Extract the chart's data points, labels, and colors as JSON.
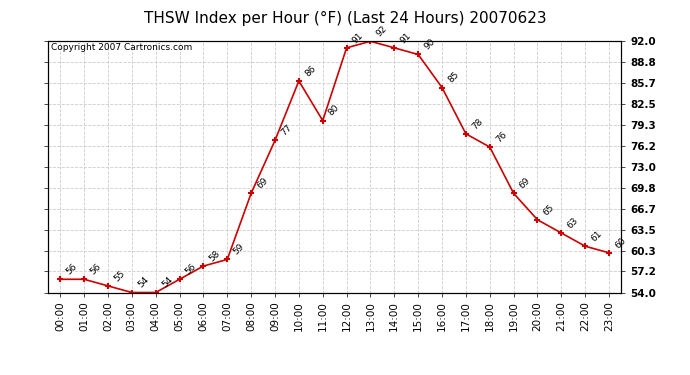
{
  "title": "THSW Index per Hour (°F) (Last 24 Hours) 20070623",
  "copyright": "Copyright 2007 Cartronics.com",
  "hours": [
    "00:00",
    "01:00",
    "02:00",
    "03:00",
    "04:00",
    "05:00",
    "06:00",
    "07:00",
    "08:00",
    "09:00",
    "10:00",
    "11:00",
    "12:00",
    "13:00",
    "14:00",
    "15:00",
    "16:00",
    "17:00",
    "18:00",
    "19:00",
    "20:00",
    "21:00",
    "22:00",
    "23:00"
  ],
  "values": [
    56,
    56,
    55,
    54,
    54,
    56,
    58,
    59,
    69,
    77,
    86,
    80,
    91,
    92,
    91,
    90,
    85,
    78,
    76,
    69,
    65,
    63,
    61,
    60
  ],
  "line_color": "#cc0000",
  "bg_color": "#ffffff",
  "grid_color": "#cccccc",
  "ylim_min": 54.0,
  "ylim_max": 92.0,
  "yticks": [
    54.0,
    57.2,
    60.3,
    63.5,
    66.7,
    69.8,
    73.0,
    76.2,
    79.3,
    82.5,
    85.7,
    88.8,
    92.0
  ],
  "title_fontsize": 11,
  "copyright_fontsize": 6.5,
  "label_fontsize": 6.5,
  "tick_fontsize": 7.5,
  "ylabel_fontsize": 7.5
}
